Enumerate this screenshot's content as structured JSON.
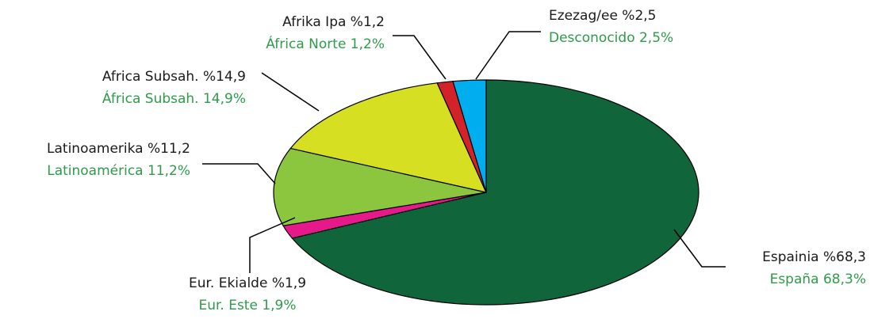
{
  "chart_data": {
    "type": "pie",
    "categories": [
      "Espainia",
      "Eur. Ekialde",
      "Latinoamerika",
      "Africa Subsah.",
      "Afrika Ipa",
      "Ezezag/ee"
    ],
    "values": [
      68.3,
      1.9,
      11.2,
      14.9,
      1.2,
      2.5
    ],
    "value_labels": [
      "Espainia %68,3",
      "Eur. Ekialde %1,9",
      "Latinoamerika %11,2",
      "Africa Subsah. %14,9",
      "Afrika Ipa %1,2",
      "Ezezag/ee %2,5"
    ],
    "value_labels_es": [
      "España 68,3%",
      "Eur. Este 1,9%",
      "Latinoamérica 11,2%",
      "África Subsah. 14,9%",
      "África Norte 1,2%",
      "Desconocido 2,5%"
    ],
    "colors": [
      "#10653a",
      "#e6198a",
      "#8cc63f",
      "#d7df23",
      "#d2232a",
      "#00aeef"
    ]
  }
}
